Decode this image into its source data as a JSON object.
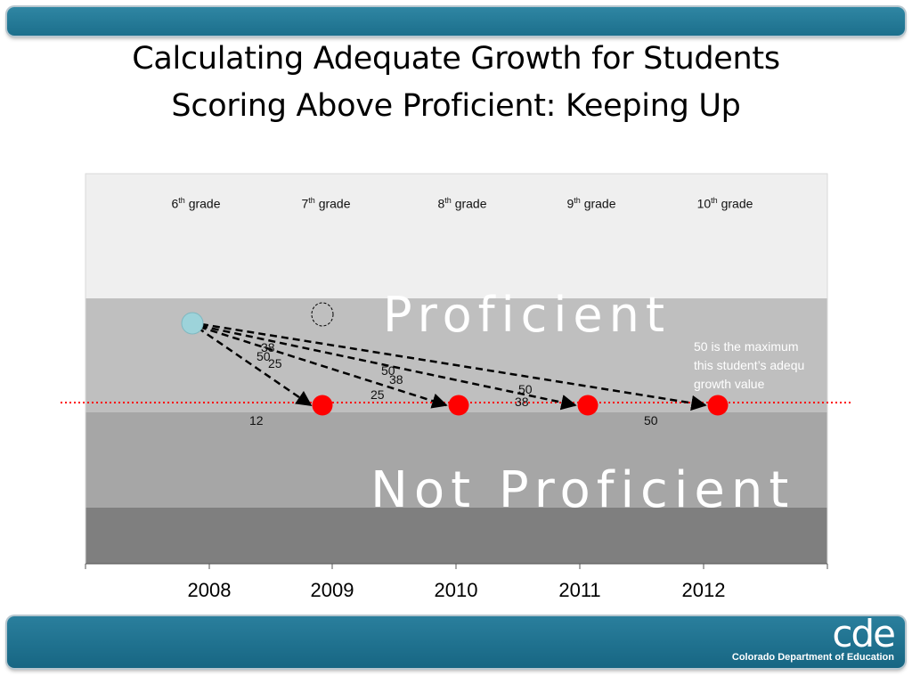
{
  "slide": {
    "title_line1": "Calculating Adequate Growth for Students",
    "title_line2": "Scoring Above Proficient: Keeping Up"
  },
  "grades": [
    {
      "num": "6",
      "sup": "th",
      "word": "grade"
    },
    {
      "num": "7",
      "sup": "th",
      "word": "grade"
    },
    {
      "num": "8",
      "sup": "th",
      "word": "grade"
    },
    {
      "num": "9",
      "sup": "th",
      "word": "grade"
    },
    {
      "num": "10",
      "sup": "th",
      "word": "grade"
    }
  ],
  "bands": {
    "proficient": "Proficient",
    "not_proficient": "Not Proficient"
  },
  "note": {
    "line1": "50  is the maximum",
    "line2": "this student’s adequ",
    "line3": "growth value"
  },
  "years": [
    "2008",
    "2009",
    "2010",
    "2011",
    "2012"
  ],
  "arrow_labels": {
    "to_2009": [
      "38",
      "50",
      "25",
      "12"
    ],
    "to_2010": [
      "50",
      "38",
      "25"
    ],
    "to_2011": [
      "50",
      "38"
    ],
    "to_2012": [
      "50"
    ]
  },
  "colors": {
    "bar": "#1c6f8c",
    "band_top": "#efefef",
    "band_proficient": "#bfbfbf",
    "band_not_proficient": "#a6a6a6",
    "band_bottom": "#7f7f7f",
    "target_dot": "#ff0000",
    "start_dot": "#9dd3da",
    "cut_line": "#ff0000"
  },
  "footer": {
    "logo_mark": "cde",
    "logo_text": "Colorado Department of Education"
  }
}
